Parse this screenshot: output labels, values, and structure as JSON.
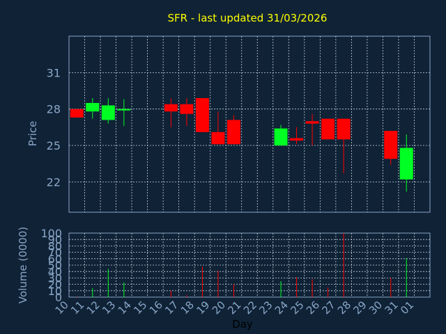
{
  "chart_data": [
    {
      "type": "candlestick",
      "title": "SFR - last updated 31/03/2026",
      "ylabel": "Price",
      "xlabel": "",
      "ylim": [
        19.5,
        34
      ],
      "yticks": [
        22,
        25,
        28,
        31
      ],
      "grid": true,
      "colors": {
        "up": "#00ff22",
        "down": "#ff0000"
      },
      "candles": [
        {
          "day": "10",
          "open": 28.0,
          "high": 28.0,
          "low": 27.3,
          "close": 27.3
        },
        {
          "day": "11",
          "open": 27.8,
          "high": 28.9,
          "low": 27.2,
          "close": 28.5
        },
        {
          "day": "12",
          "open": 27.1,
          "high": 28.9,
          "low": 26.8,
          "close": 28.3
        },
        {
          "day": "13",
          "open": 27.9,
          "high": 28.8,
          "low": 26.6,
          "close": 28.0
        },
        {
          "day": "16",
          "open": 28.4,
          "high": 28.9,
          "low": 26.5,
          "close": 27.8
        },
        {
          "day": "17",
          "open": 28.4,
          "high": 28.9,
          "low": 26.6,
          "close": 27.6
        },
        {
          "day": "18",
          "open": 28.9,
          "high": 28.9,
          "low": 26.1,
          "close": 26.1
        },
        {
          "day": "19",
          "open": 26.1,
          "high": 27.8,
          "low": 25.1,
          "close": 25.1
        },
        {
          "day": "20",
          "open": 27.1,
          "high": 27.5,
          "low": 25.1,
          "close": 25.1
        },
        {
          "day": "23",
          "open": 25.0,
          "high": 26.7,
          "low": 25.0,
          "close": 26.4
        },
        {
          "day": "24",
          "open": 25.6,
          "high": 26.5,
          "low": 25.1,
          "close": 25.4
        },
        {
          "day": "25",
          "open": 27.0,
          "high": 27.6,
          "low": 25.0,
          "close": 26.8
        },
        {
          "day": "26",
          "open": 27.2,
          "high": 27.2,
          "low": 25.5,
          "close": 25.5
        },
        {
          "day": "27",
          "open": 27.2,
          "high": 27.2,
          "low": 22.7,
          "close": 25.5
        },
        {
          "day": "30",
          "open": 26.2,
          "high": 26.2,
          "low": 23.4,
          "close": 23.9
        },
        {
          "day": "31",
          "open": 22.2,
          "high": 25.9,
          "low": 21.2,
          "close": 24.8
        }
      ]
    },
    {
      "type": "bar",
      "title": "",
      "ylabel": "Volume (0000)",
      "xlabel": "Day",
      "ylim": [
        0,
        100
      ],
      "yticks": [
        0,
        10,
        20,
        30,
        40,
        50,
        60,
        70,
        80,
        90,
        100
      ],
      "grid": true,
      "categories": [
        "10",
        "11",
        "12",
        "13",
        "14",
        "16",
        "17",
        "18",
        "19",
        "20",
        "21",
        "22",
        "23",
        "24",
        "25",
        "26",
        "27",
        "28",
        "29",
        "30",
        "31",
        "01"
      ],
      "x_ticks": [
        "10",
        "11",
        "12",
        "13",
        "14",
        "15",
        "16",
        "17",
        "18",
        "19",
        "20",
        "21",
        "22",
        "23",
        "24",
        "25",
        "26",
        "27",
        "28",
        "29",
        "30",
        "31",
        "01"
      ],
      "series": [
        {
          "day": "10",
          "value": 1,
          "color": "#ff0000"
        },
        {
          "day": "11",
          "value": 14,
          "color": "#00ff22"
        },
        {
          "day": "12",
          "value": 44,
          "color": "#00ff22"
        },
        {
          "day": "13",
          "value": 23,
          "color": "#00ff22"
        },
        {
          "day": "16",
          "value": 10,
          "color": "#ff0000"
        },
        {
          "day": "17",
          "value": 3,
          "color": "#ff0000"
        },
        {
          "day": "18",
          "value": 48,
          "color": "#ff0000"
        },
        {
          "day": "19",
          "value": 41,
          "color": "#ff0000"
        },
        {
          "day": "20",
          "value": 20,
          "color": "#ff0000"
        },
        {
          "day": "23",
          "value": 25,
          "color": "#00ff22"
        },
        {
          "day": "24",
          "value": 31,
          "color": "#ff0000"
        },
        {
          "day": "25",
          "value": 28,
          "color": "#ff0000"
        },
        {
          "day": "26",
          "value": 15,
          "color": "#ff0000"
        },
        {
          "day": "27",
          "value": 100,
          "color": "#ff0000"
        },
        {
          "day": "30",
          "value": 30,
          "color": "#ff0000"
        },
        {
          "day": "31",
          "value": 61,
          "color": "#00ff22"
        }
      ]
    }
  ]
}
